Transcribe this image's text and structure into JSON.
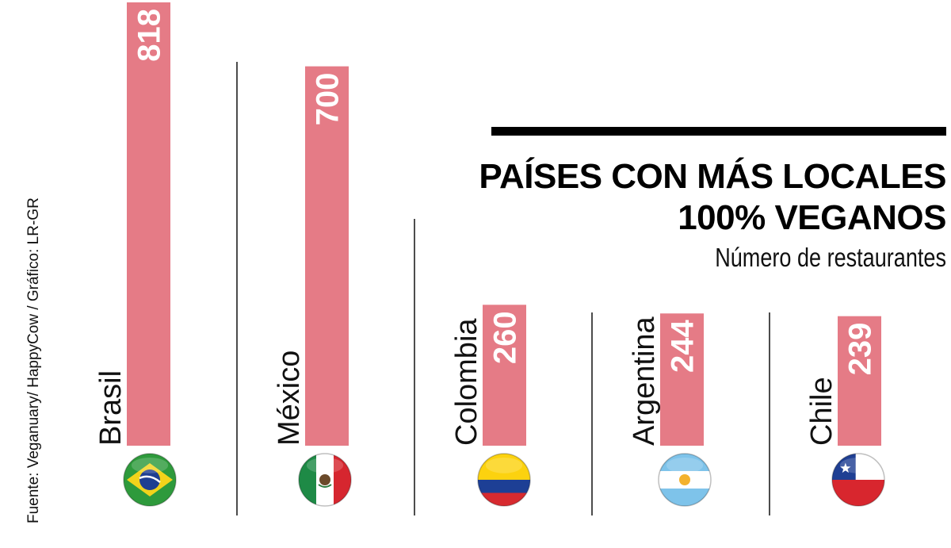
{
  "chart_data": {
    "type": "bar",
    "title": "PAÍSES CON MÁS LOCALES 100% VEGANOS",
    "title_lines": [
      "PAÍSES CON MÁS LOCALES",
      "100% VEGANOS"
    ],
    "subtitle": "Número de restaurantes",
    "categories": [
      "Brasil",
      "México",
      "Colombia",
      "Argentina",
      "Chile"
    ],
    "values": [
      818,
      700,
      260,
      244,
      239
    ],
    "value_labels": [
      "818",
      "700",
      "260",
      "244",
      "239"
    ],
    "ylim": [
      0,
      818
    ],
    "grid": false,
    "bar_color": "#e57b86",
    "source": "Fuente: Veganuary/ HappyCow  / Gráfico: LR-GR",
    "flags": [
      "brazil-flag-icon",
      "mexico-flag-icon",
      "colombia-flag-icon",
      "argentina-flag-icon",
      "chile-flag-icon"
    ]
  }
}
